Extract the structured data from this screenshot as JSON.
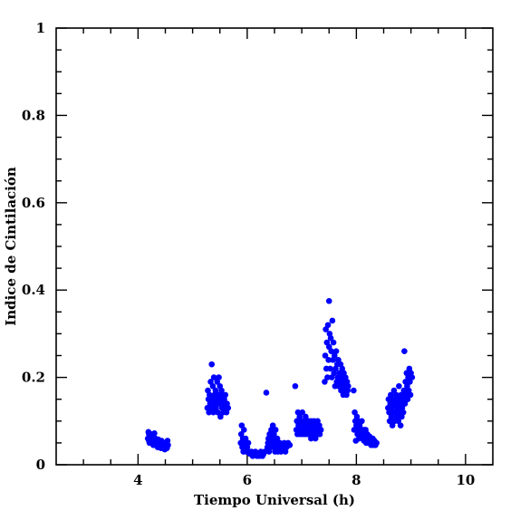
{
  "chart_data": {
    "type": "scatter",
    "xlabel": "Tiempo Universal (h)",
    "ylabel": "Indice de Cintilación",
    "xlim": [
      2.5,
      10.5
    ],
    "ylim": [
      0,
      1
    ],
    "x_ticks": [
      4,
      6,
      8,
      10
    ],
    "x_tick_labels": [
      "4",
      "6",
      "8",
      "10"
    ],
    "y_ticks": [
      0,
      0.2,
      0.4,
      0.6,
      0.8,
      1
    ],
    "y_tick_labels": [
      "0",
      "0.2",
      "0.4",
      "0.6",
      "0.8",
      "1"
    ],
    "grid": false,
    "marker_color": "#0000ff",
    "series": [
      {
        "x": [
          4.18,
          4.19,
          4.2,
          4.2,
          4.21,
          4.22,
          4.23,
          4.24,
          4.25,
          4.26,
          4.27,
          4.28,
          4.29,
          4.3,
          4.31,
          4.32,
          4.33,
          4.34,
          4.35,
          4.36,
          4.37,
          4.38,
          4.39,
          4.4,
          4.41,
          4.42,
          4.43,
          4.44,
          4.45,
          4.46,
          4.47,
          4.48,
          4.49,
          4.5,
          4.51,
          4.52,
          4.53,
          4.54,
          4.55,
          5.27,
          5.28,
          5.29,
          5.3,
          5.31,
          5.32,
          5.33,
          5.34,
          5.35,
          5.36,
          5.37,
          5.38,
          5.39,
          5.4,
          5.41,
          5.42,
          5.43,
          5.44,
          5.45,
          5.46,
          5.47,
          5.48,
          5.49,
          5.5,
          5.51,
          5.52,
          5.53,
          5.54,
          5.55,
          5.56,
          5.57,
          5.58,
          5.59,
          5.6,
          5.62,
          5.63,
          5.65,
          5.88,
          5.89,
          5.9,
          5.91,
          5.92,
          5.93,
          5.94,
          5.95,
          5.96,
          5.97,
          5.98,
          5.99,
          6.0,
          6.01,
          6.02,
          6.03,
          6.05,
          6.08,
          6.1,
          6.12,
          6.15,
          6.18,
          6.2,
          6.22,
          6.25,
          6.28,
          6.3,
          6.32,
          6.35,
          6.37,
          6.38,
          6.39,
          6.4,
          6.41,
          6.42,
          6.43,
          6.44,
          6.45,
          6.46,
          6.47,
          6.48,
          6.49,
          6.5,
          6.51,
          6.52,
          6.53,
          6.54,
          6.55,
          6.56,
          6.57,
          6.58,
          6.6,
          6.62,
          6.65,
          6.68,
          6.7,
          6.72,
          6.75,
          6.78,
          6.88,
          6.9,
          6.91,
          6.92,
          6.93,
          6.94,
          6.95,
          6.96,
          6.97,
          6.98,
          6.99,
          7.0,
          7.01,
          7.02,
          7.03,
          7.04,
          7.05,
          7.06,
          7.07,
          7.08,
          7.09,
          7.1,
          7.11,
          7.12,
          7.13,
          7.14,
          7.15,
          7.16,
          7.17,
          7.18,
          7.19,
          7.2,
          7.21,
          7.22,
          7.23,
          7.24,
          7.25,
          7.26,
          7.27,
          7.28,
          7.29,
          7.3,
          7.31,
          7.32,
          7.33,
          7.35,
          7.42,
          7.43,
          7.44,
          7.45,
          7.46,
          7.47,
          7.48,
          7.49,
          7.5,
          7.5,
          7.51,
          7.52,
          7.53,
          7.54,
          7.55,
          7.56,
          7.57,
          7.58,
          7.59,
          7.6,
          7.61,
          7.62,
          7.63,
          7.64,
          7.65,
          7.66,
          7.67,
          7.68,
          7.69,
          7.7,
          7.71,
          7.72,
          7.73,
          7.74,
          7.75,
          7.76,
          7.77,
          7.78,
          7.79,
          7.8,
          7.81,
          7.82,
          7.83,
          7.84,
          7.85,
          7.95,
          7.96,
          7.97,
          7.98,
          7.99,
          8.0,
          8.01,
          8.02,
          8.03,
          8.04,
          8.05,
          8.06,
          8.07,
          8.08,
          8.09,
          8.1,
          8.11,
          8.12,
          8.13,
          8.14,
          8.15,
          8.16,
          8.17,
          8.18,
          8.19,
          8.2,
          8.21,
          8.22,
          8.23,
          8.24,
          8.25,
          8.26,
          8.27,
          8.28,
          8.29,
          8.3,
          8.31,
          8.32,
          8.33,
          8.35,
          8.37,
          8.58,
          8.59,
          8.6,
          8.61,
          8.62,
          8.63,
          8.64,
          8.65,
          8.66,
          8.67,
          8.68,
          8.69,
          8.7,
          8.71,
          8.72,
          8.73,
          8.74,
          8.75,
          8.76,
          8.77,
          8.78,
          8.79,
          8.8,
          8.81,
          8.82,
          8.83,
          8.84,
          8.85,
          8.86,
          8.87,
          8.88,
          8.89,
          8.9,
          8.91,
          8.92,
          8.93,
          8.94,
          8.95,
          8.96,
          8.97,
          8.98,
          8.99,
          9.0,
          9.02
        ],
        "y": [
          0.06,
          0.075,
          0.055,
          0.07,
          0.05,
          0.065,
          0.06,
          0.055,
          0.07,
          0.05,
          0.06,
          0.045,
          0.055,
          0.072,
          0.05,
          0.06,
          0.045,
          0.055,
          0.05,
          0.04,
          0.058,
          0.048,
          0.052,
          0.045,
          0.05,
          0.038,
          0.055,
          0.042,
          0.048,
          0.04,
          0.05,
          0.045,
          0.035,
          0.05,
          0.042,
          0.04,
          0.038,
          0.055,
          0.045,
          0.13,
          0.17,
          0.15,
          0.12,
          0.16,
          0.14,
          0.19,
          0.13,
          0.23,
          0.15,
          0.18,
          0.12,
          0.2,
          0.16,
          0.14,
          0.17,
          0.13,
          0.15,
          0.19,
          0.12,
          0.16,
          0.2,
          0.14,
          0.18,
          0.11,
          0.15,
          0.17,
          0.13,
          0.16,
          0.12,
          0.14,
          0.15,
          0.13,
          0.16,
          0.12,
          0.14,
          0.13,
          0.05,
          0.07,
          0.09,
          0.04,
          0.06,
          0.03,
          0.08,
          0.05,
          0.04,
          0.06,
          0.03,
          0.05,
          0.04,
          0.03,
          0.05,
          0.03,
          0.025,
          0.03,
          0.02,
          0.025,
          0.03,
          0.02,
          0.025,
          0.02,
          0.03,
          0.02,
          0.025,
          0.03,
          0.165,
          0.04,
          0.05,
          0.06,
          0.03,
          0.07,
          0.05,
          0.04,
          0.08,
          0.06,
          0.05,
          0.09,
          0.04,
          0.07,
          0.06,
          0.03,
          0.08,
          0.05,
          0.04,
          0.06,
          0.03,
          0.05,
          0.04,
          0.05,
          0.03,
          0.04,
          0.05,
          0.03,
          0.04,
          0.05,
          0.045,
          0.18,
          0.08,
          0.1,
          0.07,
          0.12,
          0.09,
          0.08,
          0.11,
          0.07,
          0.1,
          0.08,
          0.09,
          0.12,
          0.07,
          0.1,
          0.08,
          0.09,
          0.07,
          0.11,
          0.08,
          0.1,
          0.07,
          0.09,
          0.08,
          0.1,
          0.07,
          0.09,
          0.08,
          0.06,
          0.1,
          0.07,
          0.09,
          0.08,
          0.07,
          0.1,
          0.08,
          0.06,
          0.09,
          0.07,
          0.08,
          0.1,
          0.07,
          0.08,
          0.09,
          0.07,
          0.08,
          0.19,
          0.25,
          0.31,
          0.22,
          0.28,
          0.2,
          0.32,
          0.24,
          0.27,
          0.375,
          0.3,
          0.22,
          0.29,
          0.26,
          0.2,
          0.33,
          0.24,
          0.28,
          0.21,
          0.25,
          0.18,
          0.22,
          0.26,
          0.19,
          0.23,
          0.2,
          0.24,
          0.18,
          0.21,
          0.19,
          0.23,
          0.17,
          0.2,
          0.22,
          0.18,
          0.16,
          0.21,
          0.19,
          0.17,
          0.2,
          0.18,
          0.16,
          0.19,
          0.17,
          0.18,
          0.17,
          0.08,
          0.12,
          0.1,
          0.055,
          0.09,
          0.11,
          0.07,
          0.1,
          0.08,
          0.06,
          0.09,
          0.07,
          0.08,
          0.065,
          0.1,
          0.07,
          0.06,
          0.08,
          0.055,
          0.07,
          0.06,
          0.08,
          0.05,
          0.065,
          0.07,
          0.055,
          0.06,
          0.05,
          0.065,
          0.055,
          0.06,
          0.045,
          0.055,
          0.05,
          0.06,
          0.045,
          0.05,
          0.055,
          0.045,
          0.05,
          0.13,
          0.15,
          0.12,
          0.1,
          0.14,
          0.16,
          0.11,
          0.13,
          0.09,
          0.15,
          0.12,
          0.17,
          0.1,
          0.14,
          0.12,
          0.16,
          0.11,
          0.13,
          0.15,
          0.1,
          0.18,
          0.12,
          0.14,
          0.09,
          0.16,
          0.11,
          0.13,
          0.15,
          0.12,
          0.17,
          0.26,
          0.14,
          0.19,
          0.16,
          0.21,
          0.18,
          0.15,
          0.2,
          0.17,
          0.22,
          0.19,
          0.16,
          0.21,
          0.2
        ]
      }
    ]
  }
}
